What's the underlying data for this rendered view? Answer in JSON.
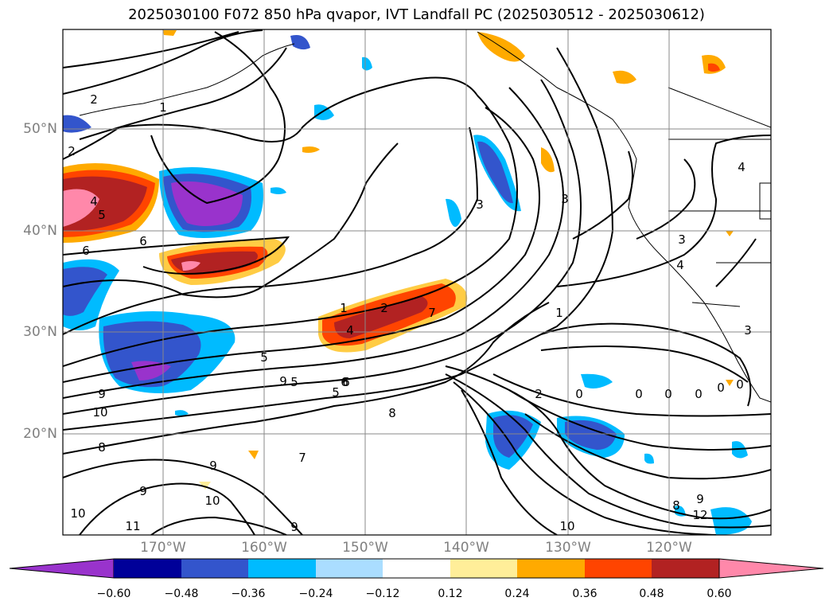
{
  "title": "2025030100 F072 850 hPa qvapor, IVT Landfall PC (2025030512 - 2025030612)",
  "map": {
    "lat_labels": [
      "50°N",
      "40°N",
      "30°N",
      "20°N"
    ],
    "lon_labels": [
      "170°W",
      "160°W",
      "150°W",
      "140°W",
      "130°W",
      "120°W"
    ],
    "contour_labels": [
      "2",
      "1",
      "2",
      "4",
      "5",
      "6",
      "6",
      "1",
      "2",
      "4",
      "5",
      "6",
      "7",
      "3",
      "3",
      "1",
      "2",
      "0",
      "0",
      "0",
      "0",
      "0",
      "0",
      "3",
      "4",
      "4",
      "5",
      "5",
      "6",
      "8",
      "8",
      "9",
      "9",
      "9",
      "10",
      "10",
      "9",
      "11",
      "9",
      "10",
      "12",
      "10",
      "9",
      "8",
      "7",
      "3"
    ]
  },
  "colorbar": {
    "tick_labels": [
      "−0.60",
      "−0.48",
      "−0.36",
      "−0.24",
      "−0.12",
      "0.12",
      "0.24",
      "0.36",
      "0.48",
      "0.60"
    ],
    "colors": [
      "#9933cc",
      "#000099",
      "#3355cc",
      "#00bbff",
      "#aaddff",
      "#ffffff",
      "#ffee99",
      "#ffaa00",
      "#ff4400",
      "#b22222",
      "#ff88aa"
    ]
  }
}
